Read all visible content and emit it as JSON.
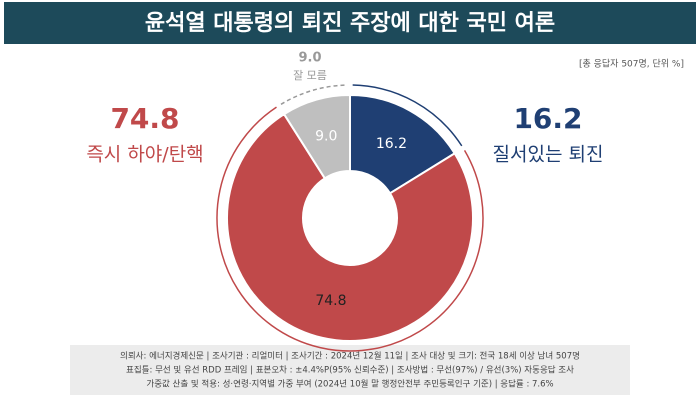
{
  "chart_data": {
    "type": "pie",
    "title": "윤석열 대통령의 퇴진 주장에 대한 국민 여론",
    "subtitle": "[총 응답자 507명, 단위 %]",
    "categories": [
      "질서있는 퇴진",
      "즉시 하야/탄핵",
      "잘 모름"
    ],
    "values": [
      16.2,
      74.8,
      9.0
    ],
    "value_labels": [
      "16.2",
      "74.8",
      "9.0"
    ],
    "colors": [
      "#1f3f73",
      "#c0494a",
      "#bfbfbf"
    ],
    "footer": [
      "의뢰사: 에너지경제신문 | 조사기관 : 리얼미터 | 조사기간 : 2024년 12월 11일 | 조사 대상 및 크기: 전국 18세 이상 남녀 507명",
      "표집틀: 무선 및 유선 RDD 프레임 | 표본오차 : ±4.4%P(95% 신뢰수준) | 조사방법 : 무선(97%) / 유선(3%) 자동응답 조사",
      "가중값 산출 및 적용: 성·연령·지역별 가중 부여 (2024년 10월 말 행정안전부 주민등록인구 기준) | 응답률 : 7.6%"
    ]
  }
}
